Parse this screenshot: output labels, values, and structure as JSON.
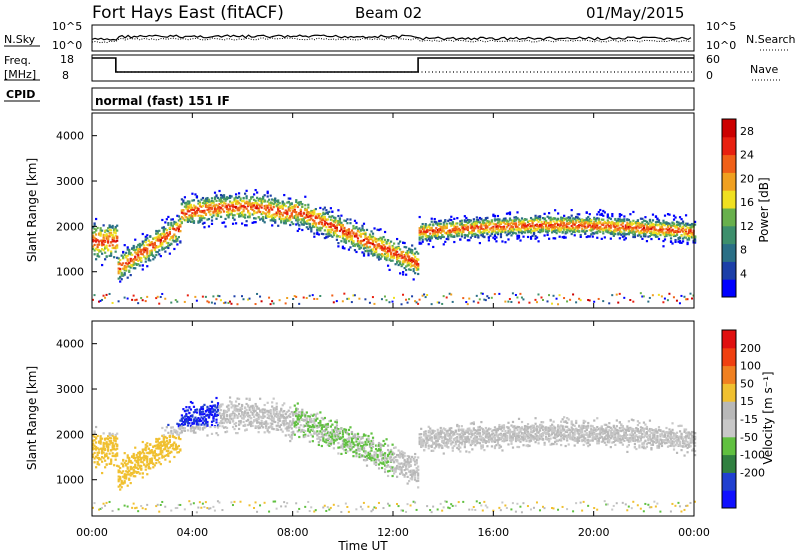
{
  "header": {
    "title": "Fort Hays East (fitACF)",
    "beam": "Beam 02",
    "date": "01/May/2015"
  },
  "cpid": {
    "label": "CPID",
    "value": "normal (fast) 151 IF"
  },
  "colors": {
    "power": [
      "#0000ff",
      "#1c3fa8",
      "#2a6f86",
      "#3d8f6c",
      "#68b04c",
      "#f0e020",
      "#f0a020",
      "#f06018",
      "#e82010",
      "#cc0000"
    ],
    "velocity": [
      "#1010ff",
      "#2040d0",
      "#308040",
      "#60c040",
      "#c8c8c8",
      "#b8b8b8",
      "#f0c030",
      "#f08020",
      "#f04010",
      "#e01010"
    ]
  },
  "chart_data": [
    {
      "type": "line",
      "name": "noise",
      "left_label": "N.Sky",
      "right_label": "N.Search",
      "left_ticks": [
        "10^5",
        "10^0"
      ],
      "right_ticks": [
        "10^5",
        "10^0"
      ],
      "xlim": [
        0,
        24
      ]
    },
    {
      "type": "line",
      "name": "frequency-nave",
      "left_label": "Freq.",
      "left_unit": "[MHz]",
      "right_label": "Nave",
      "left_ticks": [
        "18",
        "8"
      ],
      "right_ticks": [
        "60",
        "0"
      ],
      "freq_steps": [
        [
          0,
          18
        ],
        [
          0.95,
          18
        ],
        [
          0.95,
          12
        ],
        [
          13.0,
          12
        ],
        [
          13.0,
          18
        ],
        [
          24,
          18
        ]
      ],
      "xlim": [
        0,
        24
      ]
    },
    {
      "type": "heatmap",
      "name": "power",
      "ylabel": "Slant Range [km]",
      "yticks": [
        1000,
        2000,
        3000,
        4000
      ],
      "ylim": [
        200,
        4500
      ],
      "xlim": [
        0,
        24
      ],
      "colorbar_label": "Power [dB]",
      "colorbar_ticks": [
        4,
        8,
        12,
        16,
        20,
        24,
        28
      ],
      "colorbar_range": [
        0,
        30
      ]
    },
    {
      "type": "heatmap",
      "name": "velocity",
      "ylabel": "Slant Range [km]",
      "yticks": [
        1000,
        2000,
        3000,
        4000
      ],
      "ylim": [
        200,
        4500
      ],
      "xlim": [
        0,
        24
      ],
      "xticks": [
        "00:00",
        "04:00",
        "08:00",
        "12:00",
        "16:00",
        "20:00",
        "00:00"
      ],
      "xlabel": "Time UT",
      "colorbar_label": "Velocity [m s⁻¹]",
      "colorbar_ticks": [
        200,
        100,
        50,
        15,
        -15,
        -50,
        -100,
        -200
      ]
    }
  ]
}
